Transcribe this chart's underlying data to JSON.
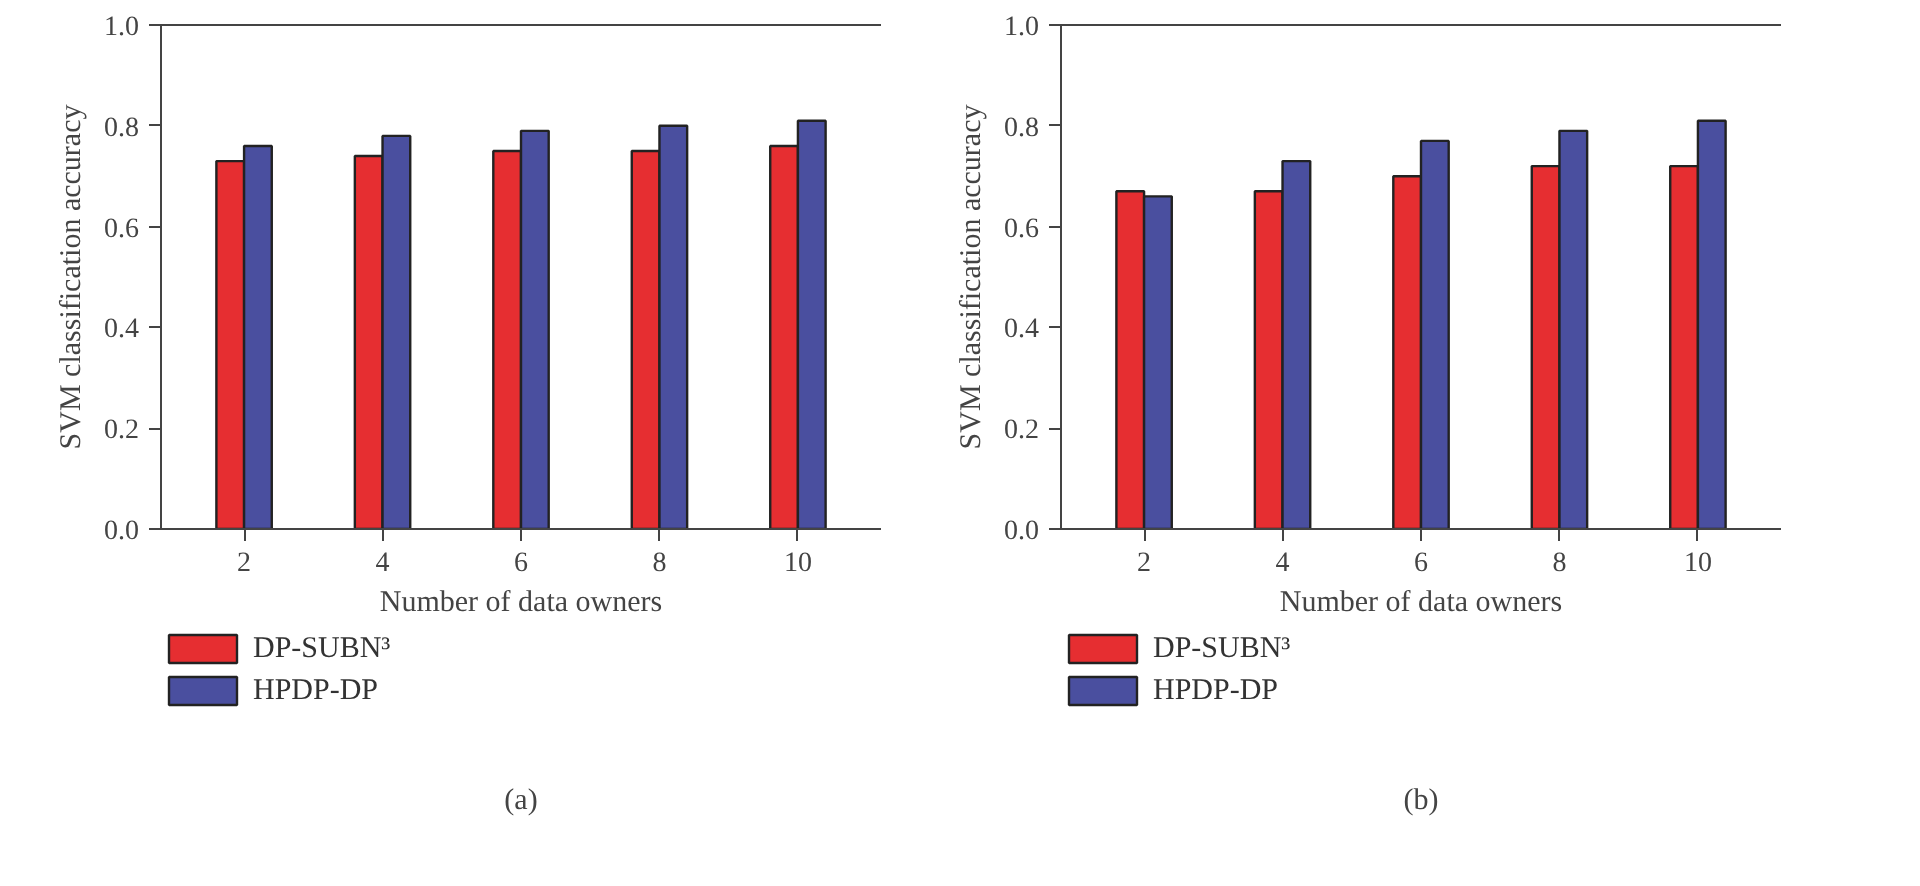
{
  "chart_data": [
    {
      "type": "bar",
      "title": "(a)",
      "xlabel": "Number of data owners",
      "ylabel": "SVM classification accuracy",
      "categories": [
        "2",
        "4",
        "6",
        "8",
        "10"
      ],
      "series": [
        {
          "name": "DP-SUBN³",
          "color": "#e62e31",
          "values": [
            0.73,
            0.74,
            0.75,
            0.75,
            0.76
          ]
        },
        {
          "name": "HPDP-DP",
          "color": "#4a4f9f",
          "values": [
            0.76,
            0.78,
            0.79,
            0.8,
            0.81
          ]
        }
      ],
      "ylim": [
        0,
        1
      ],
      "yticks": [
        {
          "value": 0,
          "label": "0.0"
        },
        {
          "value": 0.2,
          "label": "0.2"
        },
        {
          "value": 0.4,
          "label": "0.4"
        },
        {
          "value": 0.6,
          "label": "0.6"
        },
        {
          "value": 0.8,
          "label": "0.8"
        },
        {
          "value": 1,
          "label": "1.0"
        }
      ],
      "legend": "bottom left"
    },
    {
      "type": "bar",
      "title": "(b)",
      "xlabel": "Number of data owners",
      "ylabel": "SVM classification accuracy",
      "categories": [
        "2",
        "4",
        "6",
        "8",
        "10"
      ],
      "series": [
        {
          "name": "DP-SUBN³",
          "color": "#e62e31",
          "values": [
            0.67,
            0.67,
            0.7,
            0.72,
            0.72
          ]
        },
        {
          "name": "HPDP-DP",
          "color": "#4a4f9f",
          "values": [
            0.66,
            0.73,
            0.77,
            0.79,
            0.81
          ]
        }
      ],
      "ylim": [
        0,
        1
      ],
      "yticks": [
        {
          "value": 0,
          "label": "0.0"
        },
        {
          "value": 0.2,
          "label": "0.2"
        },
        {
          "value": 0.4,
          "label": "0.4"
        },
        {
          "value": 0.6,
          "label": "0.6"
        },
        {
          "value": 0.8,
          "label": "0.8"
        },
        {
          "value": 1,
          "label": "1.0"
        }
      ],
      "legend": "bottom left"
    }
  ]
}
